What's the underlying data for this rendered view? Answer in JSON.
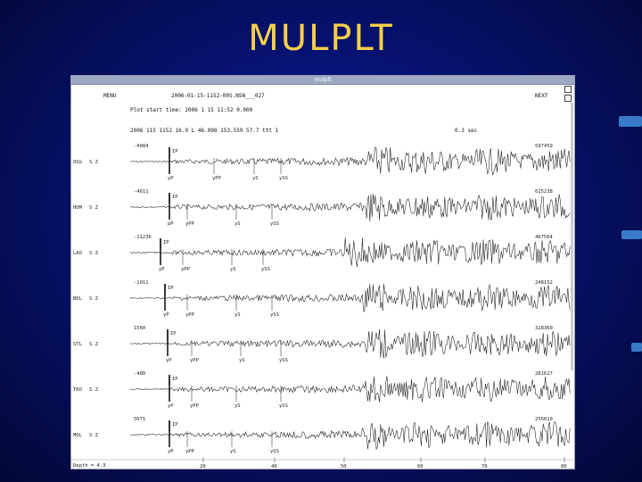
{
  "slide_title": "MULPLT",
  "window": {
    "titlebar": "mulplt",
    "header_left": "MENU",
    "header_file": "2006-01-15-1152-00S.NSN___027",
    "header_right": "NEXT",
    "plot_start": "Plot start time: 2006  1 15   11:52   0.000",
    "info_line": "2006 115 1152 16.9 L  46.098 153.559 57.7  ttt  1",
    "scale_label": "0.3 sec",
    "footer_label": "Depth =  4.3"
  },
  "channels": [
    {
      "station": "OSG",
      "comp": "S Z",
      "left_count": "-4084",
      "right_count": "597459",
      "phases": [
        "IP",
        "yP",
        "yPP",
        "yS",
        "ySS"
      ]
    },
    {
      "station": "HOM",
      "comp": "S Z",
      "left_count": "-4611",
      "right_count": "615238",
      "phases": [
        "IP",
        "pP",
        "yPP",
        "yS",
        "ySS"
      ]
    },
    {
      "station": "LAO",
      "comp": "S Z",
      "left_count": "-11236",
      "right_count": "467564",
      "phases": [
        "IP",
        "yP",
        "yPP",
        "yS",
        "ySS"
      ]
    },
    {
      "station": "BDL",
      "comp": "S Z",
      "left_count": "-1011",
      "right_count": "248152",
      "phases": [
        "IP",
        "yP",
        "yPP",
        "yS",
        "ySS"
      ]
    },
    {
      "station": "STL",
      "comp": "S Z",
      "left_count": "1560",
      "right_count": "328360",
      "phases": [
        "IP",
        "yP",
        "yPP",
        "yS",
        "ySS"
      ]
    },
    {
      "station": "TRO",
      "comp": "S Z",
      "left_count": "-480",
      "right_count": "281617",
      "phases": [
        "IP",
        "yP",
        "yPP",
        "yS",
        "ySS"
      ]
    },
    {
      "station": "MOL",
      "comp": "S Z",
      "left_count": "5071",
      "right_count": "256010",
      "phases": [
        "IP",
        "yP",
        "yPP",
        "yS",
        "ySS"
      ]
    }
  ],
  "time_axis": {
    "ticks": [
      "20",
      "40",
      "50",
      "60",
      "70",
      "80"
    ]
  },
  "colors": {
    "accent_title": "#f6cf4a",
    "background": "#071270",
    "trace": "#1a1a1a"
  }
}
